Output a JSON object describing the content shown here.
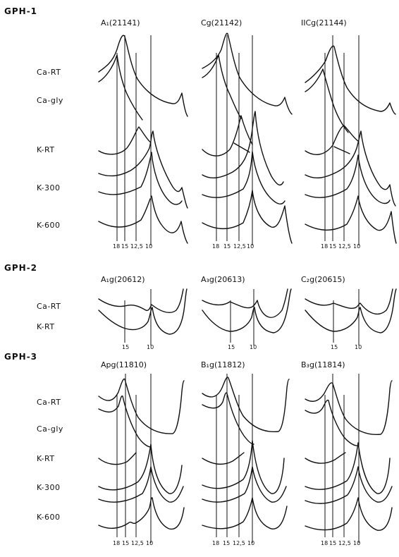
{
  "groups": [
    {
      "label": "GPH-1",
      "rows": [
        "Ca-RT",
        "Ca-gly",
        "K-RT",
        "K-300",
        "K-600"
      ],
      "samples": [
        "A₁(21141)",
        "Cg(21142)",
        "IICg(21144)"
      ],
      "ticks": [
        "18",
        "15",
        "12,5",
        "10"
      ]
    },
    {
      "label": "GPH-2",
      "rows": [
        "Ca-RT",
        "K-RT"
      ],
      "samples": [
        "A₁g(20612)",
        "A₃g(20613)",
        "C₂g(20615)"
      ],
      "ticks": [
        "15",
        "10"
      ]
    },
    {
      "label": "GPH-3",
      "rows": [
        "Ca-RT",
        "Ca-gly",
        "K-RT",
        "K-300",
        "K-600"
      ],
      "samples": [
        "Apg(11810)",
        "B₁g(11812)",
        "B₃g(11814)"
      ],
      "ticks": [
        "18",
        "15",
        "12,5",
        "10"
      ]
    }
  ]
}
